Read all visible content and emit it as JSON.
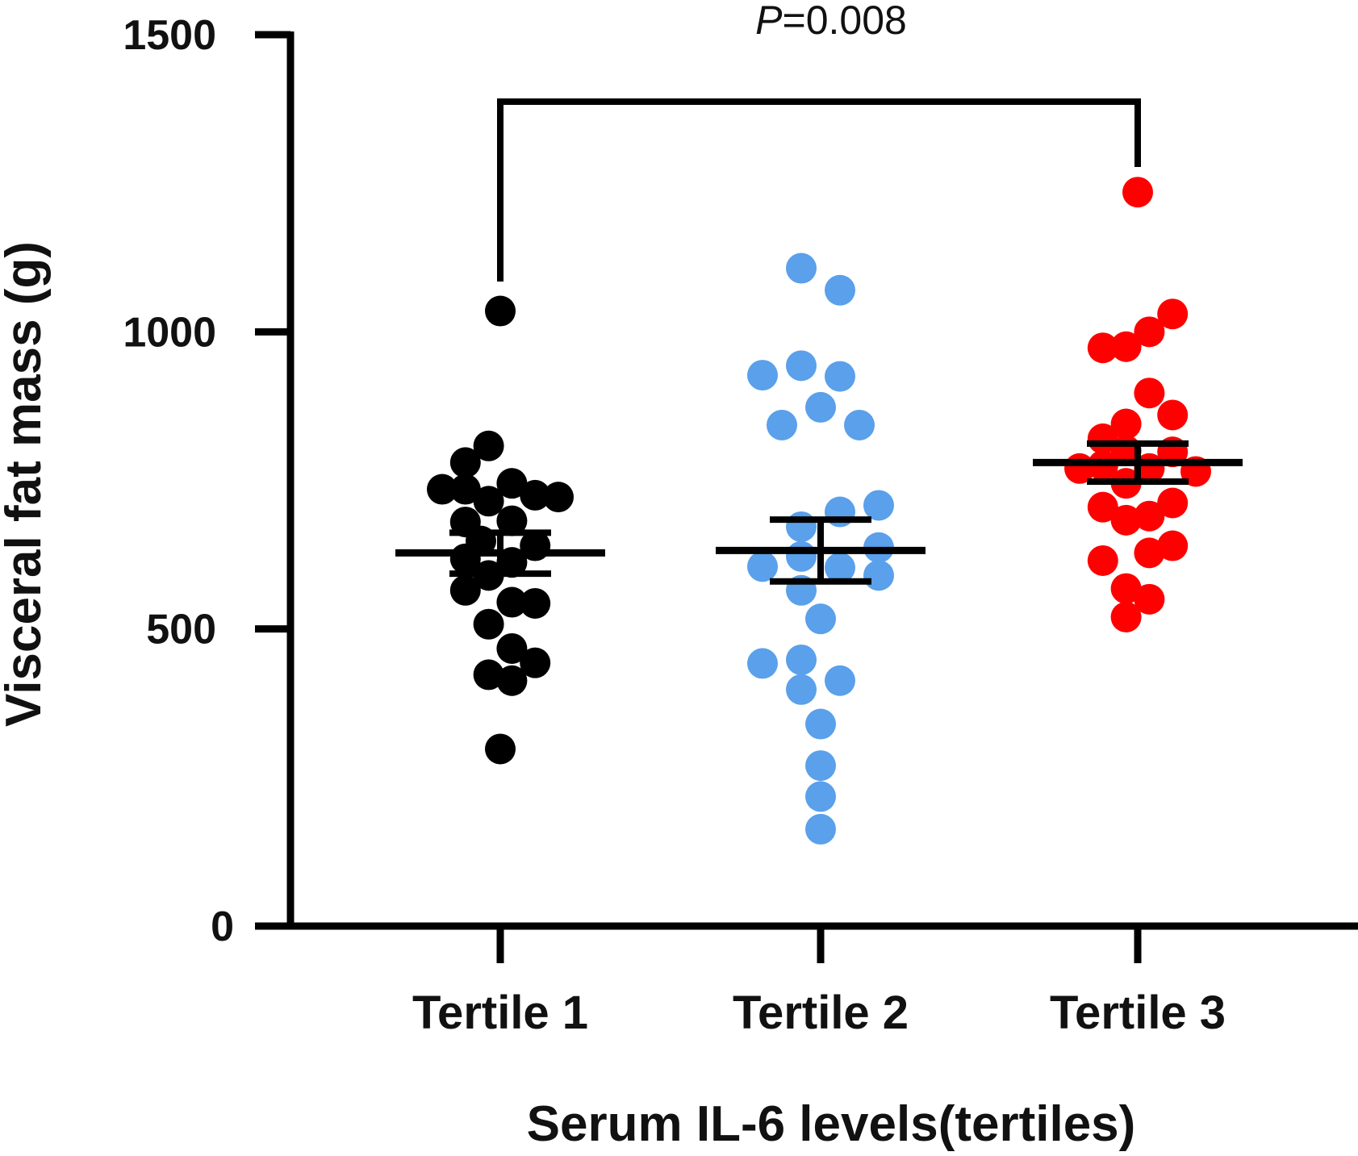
{
  "colors": {
    "axis": "#000000",
    "tertile_1": "#000000",
    "tertile_2": "#5aa0eb",
    "tertile_3": "#ff0000"
  },
  "chart_data": {
    "type": "scatter",
    "xlabel": "Serum IL-6 levels(tertiles)",
    "ylabel": "Visceral fat mass (g)",
    "ylim": [
      0,
      1500
    ],
    "yticks": [
      0,
      500,
      1000,
      1500
    ],
    "categories": [
      "Tertile 1",
      "Tertile 2",
      "Tertile 3"
    ],
    "significance": {
      "from": "Tertile 1",
      "to": "Tertile 3",
      "p_symbol": "P",
      "p_text": "=0.008"
    },
    "series": [
      {
        "category": "Tertile 1",
        "color": "#000000",
        "mean": 628,
        "sem_low": 593,
        "sem_high": 662,
        "points": [
          {
            "value": 1035,
            "offset": 0
          },
          {
            "value": 808,
            "offset": -0.3
          },
          {
            "value": 780,
            "offset": -0.9
          },
          {
            "value": 735,
            "offset": -1.5
          },
          {
            "value": 735,
            "offset": -0.9
          },
          {
            "value": 745,
            "offset": 0.3
          },
          {
            "value": 725,
            "offset": 0.9
          },
          {
            "value": 722,
            "offset": 1.5
          },
          {
            "value": 715,
            "offset": -0.3
          },
          {
            "value": 680,
            "offset": -0.9
          },
          {
            "value": 682,
            "offset": 0.3
          },
          {
            "value": 648,
            "offset": -0.5
          },
          {
            "value": 640,
            "offset": 0.9
          },
          {
            "value": 618,
            "offset": -0.9
          },
          {
            "value": 612,
            "offset": 0.3
          },
          {
            "value": 590,
            "offset": -0.3
          },
          {
            "value": 565,
            "offset": -0.9
          },
          {
            "value": 545,
            "offset": 0.3
          },
          {
            "value": 543,
            "offset": 0.9
          },
          {
            "value": 508,
            "offset": -0.3
          },
          {
            "value": 467,
            "offset": 0.3
          },
          {
            "value": 443,
            "offset": 0.9
          },
          {
            "value": 423,
            "offset": -0.3
          },
          {
            "value": 413,
            "offset": 0.3
          },
          {
            "value": 298,
            "offset": 0
          }
        ]
      },
      {
        "category": "Tertile 2",
        "color": "#5aa0eb",
        "mean": 632,
        "sem_low": 580,
        "sem_high": 684,
        "points": [
          {
            "value": 1107,
            "offset": -0.5
          },
          {
            "value": 1070,
            "offset": 0.5
          },
          {
            "value": 943,
            "offset": -0.5
          },
          {
            "value": 927,
            "offset": -1.5
          },
          {
            "value": 925,
            "offset": 0.5
          },
          {
            "value": 873,
            "offset": 0
          },
          {
            "value": 843,
            "offset": -1
          },
          {
            "value": 843,
            "offset": 1
          },
          {
            "value": 708,
            "offset": 1.5
          },
          {
            "value": 697,
            "offset": 0.5
          },
          {
            "value": 672,
            "offset": -0.5
          },
          {
            "value": 637,
            "offset": 1.5
          },
          {
            "value": 622,
            "offset": -0.5
          },
          {
            "value": 605,
            "offset": -1.5
          },
          {
            "value": 603,
            "offset": 0.5
          },
          {
            "value": 590,
            "offset": 1.5
          },
          {
            "value": 565,
            "offset": -0.5
          },
          {
            "value": 517,
            "offset": 0
          },
          {
            "value": 448,
            "offset": -0.5
          },
          {
            "value": 442,
            "offset": -1.5
          },
          {
            "value": 413,
            "offset": 0.5
          },
          {
            "value": 398,
            "offset": -0.5
          },
          {
            "value": 340,
            "offset": 0
          },
          {
            "value": 270,
            "offset": 0
          },
          {
            "value": 218,
            "offset": 0
          },
          {
            "value": 163,
            "offset": 0
          }
        ]
      },
      {
        "category": "Tertile 3",
        "color": "#ff0000",
        "mean": 780,
        "sem_low": 748,
        "sem_high": 812,
        "points": [
          {
            "value": 1235,
            "offset": 0
          },
          {
            "value": 1030,
            "offset": 0.9
          },
          {
            "value": 1000,
            "offset": 0.3
          },
          {
            "value": 975,
            "offset": -0.3
          },
          {
            "value": 973,
            "offset": -0.9
          },
          {
            "value": 897,
            "offset": 0.3
          },
          {
            "value": 860,
            "offset": 0.9
          },
          {
            "value": 845,
            "offset": -0.3
          },
          {
            "value": 820,
            "offset": -0.9
          },
          {
            "value": 800,
            "offset": -0.3
          },
          {
            "value": 798,
            "offset": 0.9
          },
          {
            "value": 775,
            "offset": -0.9
          },
          {
            "value": 770,
            "offset": -1.5
          },
          {
            "value": 770,
            "offset": 0.3
          },
          {
            "value": 765,
            "offset": 1.5
          },
          {
            "value": 745,
            "offset": -0.3
          },
          {
            "value": 712,
            "offset": 0.9
          },
          {
            "value": 705,
            "offset": -0.9
          },
          {
            "value": 690,
            "offset": 0.3
          },
          {
            "value": 683,
            "offset": -0.3
          },
          {
            "value": 640,
            "offset": 0.9
          },
          {
            "value": 628,
            "offset": 0.3
          },
          {
            "value": 615,
            "offset": -0.9
          },
          {
            "value": 568,
            "offset": -0.3
          },
          {
            "value": 550,
            "offset": 0.3
          },
          {
            "value": 520,
            "offset": -0.3
          }
        ]
      }
    ]
  }
}
